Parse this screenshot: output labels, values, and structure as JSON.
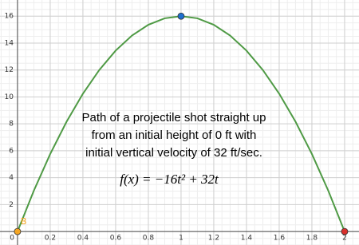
{
  "chart_data": {
    "type": "line",
    "annotation_lines": [
      "Path of a projectile shot straight up",
      "from an initial height of 0 ft with",
      "initial vertical velocity of 32 ft/sec."
    ],
    "formula": "f(x) = −16t² + 32t",
    "x": [
      0,
      0.1,
      0.2,
      0.3,
      0.4,
      0.5,
      0.6,
      0.7,
      0.8,
      0.9,
      1,
      1.1,
      1.2,
      1.3,
      1.4,
      1.5,
      1.6,
      1.7,
      1.8,
      1.9,
      2
    ],
    "series": [
      {
        "color": "#4f9a45",
        "values": [
          0,
          3.04,
          5.76,
          8.16,
          10.24,
          12,
          13.44,
          14.56,
          15.36,
          15.84,
          16,
          15.84,
          15.36,
          14.56,
          13.44,
          12,
          10.24,
          8.16,
          5.76,
          3.04,
          0
        ]
      }
    ],
    "points": [
      {
        "x": 1,
        "y": 16,
        "color": "#1e6fcf"
      },
      {
        "x": 0,
        "y": 0,
        "color": "#f5a623",
        "label": "B"
      },
      {
        "x": 2,
        "y": 0,
        "color": "#d9302c"
      }
    ],
    "xlim": [
      -0.107,
      2.088
    ],
    "ylim": [
      -1.0,
      17.2
    ],
    "xticks": [
      0,
      0.2,
      0.4,
      0.6,
      0.8,
      1,
      1.2,
      1.4,
      1.6,
      1.8,
      2
    ],
    "yticks": [
      2,
      4,
      6,
      8,
      10,
      12,
      14,
      16
    ],
    "grid": true
  }
}
